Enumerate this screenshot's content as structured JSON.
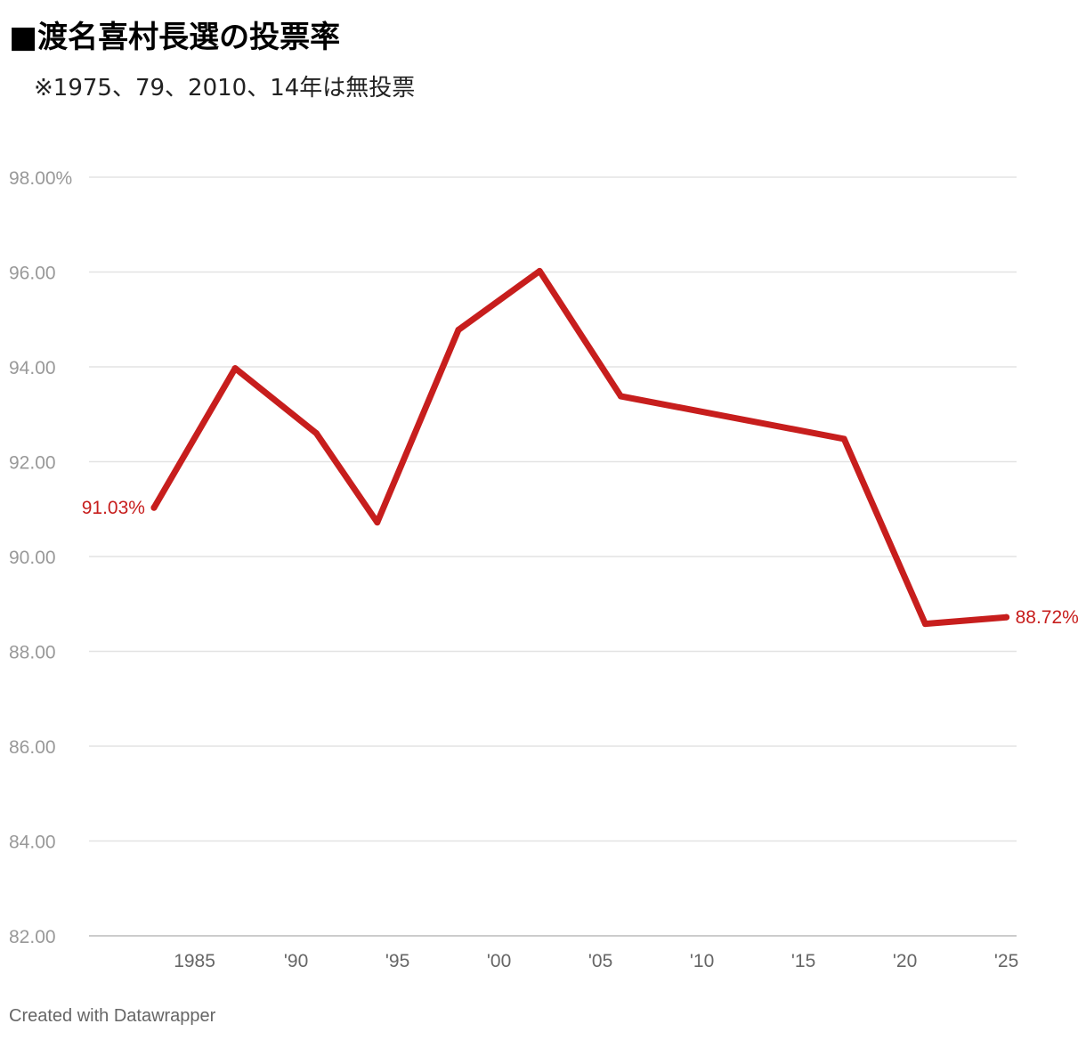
{
  "title": "■渡名喜村長選の投票率",
  "subtitle": "※1975、79、2010、14年は無投票",
  "footer": "Created with Datawrapper",
  "chart_data": {
    "type": "line",
    "title": "■渡名喜村長選の投票率",
    "subtitle": "※1975、79、2010、14年は無投票",
    "xlabel": "",
    "ylabel": "",
    "x": [
      1983,
      1987,
      1991,
      1994,
      1998,
      2002,
      2006,
      2017,
      2021,
      2025
    ],
    "series": [
      {
        "values": [
          91.03,
          93.97,
          92.6,
          90.72,
          94.78,
          96.02,
          93.38,
          92.48,
          88.58,
          88.72
        ],
        "color": "#c71e1d"
      }
    ],
    "ylim": [
      82,
      98
    ],
    "xlim": [
      1979.8,
      2025.5
    ],
    "yticks": [
      82,
      84,
      86,
      88,
      90,
      92,
      94,
      96,
      98
    ],
    "ytick_labels": [
      "82.00",
      "84.00",
      "86.00",
      "88.00",
      "90.00",
      "92.00",
      "94.00",
      "96.00",
      "98.00%"
    ],
    "xticks": [
      1985,
      1990,
      1995,
      2000,
      2005,
      2010,
      2015,
      2020,
      2025
    ],
    "xtick_labels": [
      "1985",
      "'90",
      "'95",
      "'00",
      "'05",
      "'10",
      "'15",
      "'20",
      "'25"
    ],
    "data_labels": [
      {
        "index": 0,
        "text": "91.03%"
      },
      {
        "index": 9,
        "text": "88.72%"
      }
    ],
    "grid": true,
    "legend": "none"
  }
}
